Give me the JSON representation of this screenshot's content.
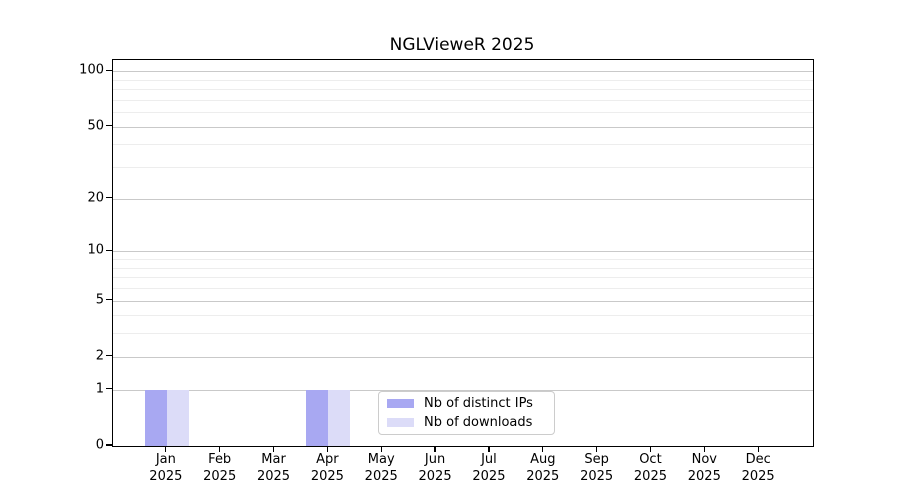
{
  "chart_data": {
    "type": "bar",
    "title": "NGLVieweR 2025",
    "categories": [
      "Jan 2025",
      "Feb 2025",
      "Mar 2025",
      "Apr 2025",
      "May 2025",
      "Jun 2025",
      "Jul 2025",
      "Aug 2025",
      "Sep 2025",
      "Oct 2025",
      "Nov 2025",
      "Dec 2025"
    ],
    "series": [
      {
        "name": "Nb of distinct IPs",
        "color": "#a8a8f2",
        "values": [
          1,
          0,
          0,
          1,
          0,
          0,
          0,
          0,
          0,
          0,
          0,
          0
        ]
      },
      {
        "name": "Nb of downloads",
        "color": "#dcdcf8",
        "values": [
          1,
          0,
          0,
          1,
          0,
          0,
          0,
          0,
          0,
          0,
          0,
          0
        ]
      }
    ],
    "xlabel": "",
    "ylabel": "",
    "yscale": "log1p",
    "ylim": [
      0,
      115
    ],
    "y_ticks": [
      0,
      1,
      2,
      5,
      10,
      20,
      50,
      100
    ],
    "y_minor_ticks": [
      3,
      4,
      6,
      7,
      8,
      9,
      30,
      40,
      60,
      70,
      80,
      90
    ],
    "grid": true,
    "legend_position": "bottom-center-inside"
  },
  "styles": {
    "major_grid_color": "#c9c9c9",
    "minor_grid_color": "#ededed",
    "axis_color": "#000000",
    "background_color": "#ffffff",
    "bar_colors": [
      "#a8a8f2",
      "#dcdcf8"
    ]
  }
}
